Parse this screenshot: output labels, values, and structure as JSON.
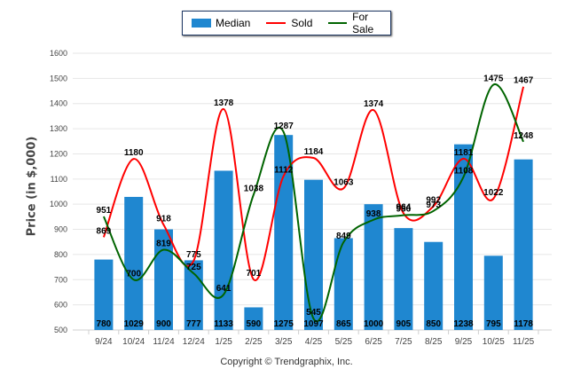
{
  "chart_data": {
    "type": "bar",
    "title": "",
    "xlabel": "",
    "ylabel": "Price (in $,000)",
    "ylim": [
      500,
      1600
    ],
    "yticks": [
      500,
      600,
      700,
      800,
      900,
      1000,
      1100,
      1200,
      1300,
      1400,
      1500,
      1600
    ],
    "grid": true,
    "legend_position": "top-center",
    "categories": [
      "9/24",
      "10/24",
      "11/24",
      "12/24",
      "1/25",
      "2/25",
      "3/25",
      "4/25",
      "5/25",
      "6/25",
      "7/25",
      "8/25",
      "9/25",
      "10/25",
      "11/25"
    ],
    "series": [
      {
        "name": "Median",
        "type": "bar",
        "color": "#1f87d0",
        "values": [
          780,
          1029,
          900,
          777,
          1133,
          590,
          1275,
          1097,
          865,
          1000,
          905,
          850,
          1238,
          795,
          1178
        ]
      },
      {
        "name": "Sold",
        "type": "line",
        "color": "#ff0000",
        "values": [
          869,
          1180,
          918,
          775,
          1378,
          701,
          1112,
          1184,
          1063,
          1374,
          964,
          992,
          1181,
          1022,
          1467
        ]
      },
      {
        "name": "For Sale",
        "type": "line",
        "color": "#006400",
        "values": [
          951,
          700,
          819,
          725,
          641,
          1038,
          1287,
          545,
          849,
          938,
          956,
          973,
          1108,
          1475,
          1248
        ]
      }
    ]
  },
  "legend": {
    "median": "Median",
    "sold": "Sold",
    "for_sale": "For Sale"
  },
  "footer": {
    "copyright": "Copyright © Trendgraphix, Inc."
  }
}
